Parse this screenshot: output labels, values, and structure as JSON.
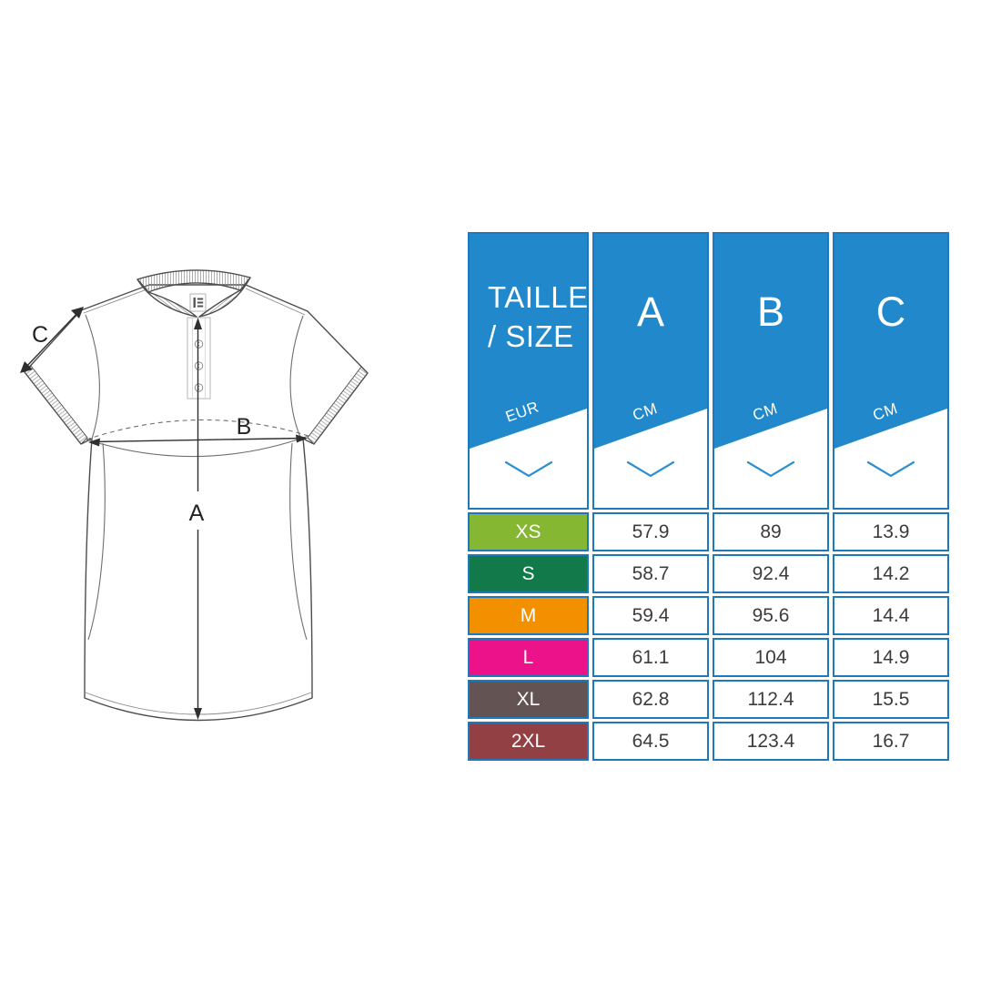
{
  "diagram": {
    "label_a": "A",
    "label_b": "B",
    "label_c": "C"
  },
  "table": {
    "size_header": {
      "line1": "TAILLE",
      "line2": "/ SIZE",
      "unit": "EUR"
    },
    "columns": [
      {
        "label": "A",
        "unit": "CM"
      },
      {
        "label": "B",
        "unit": "CM"
      },
      {
        "label": "C",
        "unit": "CM"
      }
    ],
    "rows": [
      {
        "size": "XS",
        "color": "#85b733",
        "values": [
          "57.9",
          "89",
          "13.9"
        ]
      },
      {
        "size": "S",
        "color": "#12794a",
        "values": [
          "58.7",
          "92.4",
          "14.2"
        ]
      },
      {
        "size": "M",
        "color": "#f29000",
        "values": [
          "59.4",
          "95.6",
          "14.4"
        ]
      },
      {
        "size": "L",
        "color": "#ec1289",
        "values": [
          "61.1",
          "104",
          "14.9"
        ]
      },
      {
        "size": "XL",
        "color": "#635353",
        "values": [
          "62.8",
          "112.4",
          "15.5"
        ]
      },
      {
        "size": "2XL",
        "color": "#934044",
        "values": [
          "64.5",
          "123.4",
          "16.7"
        ]
      }
    ]
  },
  "colors": {
    "header_blue": "#2189cb",
    "grid_blue": "#1d78bc",
    "chevron_blue": "#2b8fd0",
    "value_text": "#3c3c3c",
    "diagram_line": "#4d4d4d"
  }
}
